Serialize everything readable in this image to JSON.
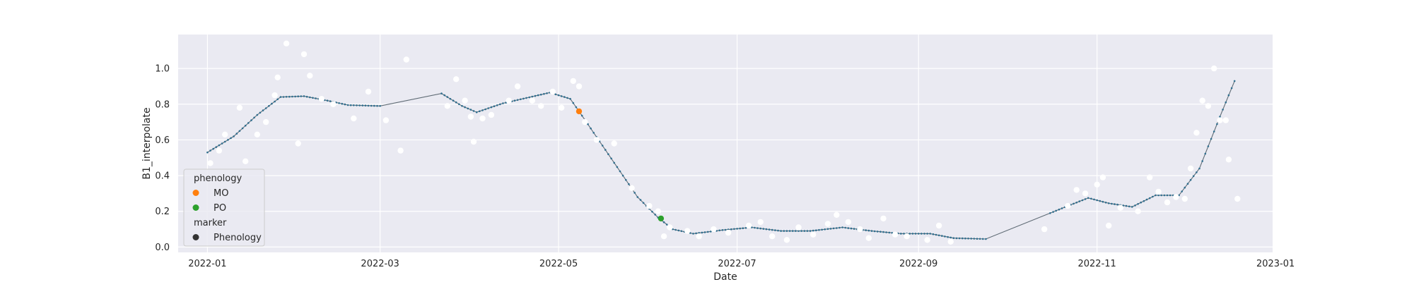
{
  "chart_data": {
    "type": "scatter",
    "title": "",
    "xlabel": "Date",
    "ylabel": "B1_interpolate",
    "x_range": [
      "2021-12-22",
      "2022-12-31"
    ],
    "ylim": [
      -0.03,
      1.19
    ],
    "x_ticks": [
      "2022-01",
      "2022-03",
      "2022-05",
      "2022-07",
      "2022-09",
      "2022-11",
      "2023-01"
    ],
    "x_tick_dates": [
      "2022-01-01",
      "2022-03-01",
      "2022-05-01",
      "2022-07-01",
      "2022-09-01",
      "2022-11-01",
      "2023-01-01"
    ],
    "y_ticks": [
      "0.0",
      "0.2",
      "0.4",
      "0.6",
      "0.8",
      "1.0"
    ],
    "y_tick_values": [
      0,
      0.2,
      0.4,
      0.6,
      0.8,
      1.0
    ],
    "grid": true,
    "background_color": "#eaeaf2",
    "legend": {
      "placement": "lower-left",
      "title_phenology": "phenology",
      "title_marker": "marker",
      "items": [
        {
          "label": "MO",
          "color": "#ff7f0e"
        },
        {
          "label": "PO",
          "color": "#2ca02c"
        }
      ],
      "marker_items": [
        {
          "label": "Phenology",
          "color": "#333333"
        }
      ]
    },
    "interpolated_line": {
      "color": "#5f6b75",
      "dot_color": "#2f6f8f",
      "knots": [
        [
          "2022-01-01",
          0.53
        ],
        [
          "2022-01-10",
          0.62
        ],
        [
          "2022-01-18",
          0.74
        ],
        [
          "2022-01-26",
          0.84
        ],
        [
          "2022-02-03",
          0.845
        ],
        [
          "2022-02-11",
          0.82
        ],
        [
          "2022-02-18",
          0.795
        ],
        [
          "2022-03-01",
          0.79
        ],
        [
          "2022-03-22",
          0.86
        ],
        [
          "2022-03-29",
          0.79
        ],
        [
          "2022-04-03",
          0.755
        ],
        [
          "2022-04-12",
          0.805
        ],
        [
          "2022-04-20",
          0.835
        ],
        [
          "2022-04-28",
          0.865
        ],
        [
          "2022-05-05",
          0.83
        ],
        [
          "2022-05-08",
          0.76
        ],
        [
          "2022-05-18",
          0.52
        ],
        [
          "2022-05-28",
          0.28
        ],
        [
          "2022-06-04",
          0.165
        ],
        [
          "2022-06-09",
          0.1
        ],
        [
          "2022-06-16",
          0.075
        ],
        [
          "2022-06-26",
          0.095
        ],
        [
          "2022-07-06",
          0.11
        ],
        [
          "2022-07-16",
          0.09
        ],
        [
          "2022-07-26",
          0.09
        ],
        [
          "2022-08-06",
          0.11
        ],
        [
          "2022-08-16",
          0.09
        ],
        [
          "2022-08-26",
          0.075
        ],
        [
          "2022-09-05",
          0.075
        ],
        [
          "2022-09-13",
          0.05
        ],
        [
          "2022-09-24",
          0.045
        ],
        [
          "2022-10-16",
          0.19
        ],
        [
          "2022-10-22",
          0.23
        ],
        [
          "2022-10-29",
          0.275
        ],
        [
          "2022-11-05",
          0.245
        ],
        [
          "2022-11-13",
          0.225
        ],
        [
          "2022-11-21",
          0.29
        ],
        [
          "2022-11-29",
          0.29
        ],
        [
          "2022-12-06",
          0.44
        ],
        [
          "2022-12-13",
          0.73
        ],
        [
          "2022-12-18",
          0.93
        ]
      ]
    },
    "observed_points": {
      "color": "#ffffff",
      "points": [
        [
          "2022-01-02",
          0.47
        ],
        [
          "2022-01-05",
          0.54
        ],
        [
          "2022-01-07",
          0.63
        ],
        [
          "2022-01-12",
          0.78
        ],
        [
          "2022-01-14",
          0.48
        ],
        [
          "2022-01-18",
          0.63
        ],
        [
          "2022-01-21",
          0.7
        ],
        [
          "2022-01-24",
          0.85
        ],
        [
          "2022-01-25",
          0.95
        ],
        [
          "2022-01-28",
          1.14
        ],
        [
          "2022-02-01",
          0.58
        ],
        [
          "2022-02-03",
          1.08
        ],
        [
          "2022-02-05",
          0.96
        ],
        [
          "2022-02-09",
          0.83
        ],
        [
          "2022-02-13",
          0.8
        ],
        [
          "2022-02-20",
          0.72
        ],
        [
          "2022-02-25",
          0.87
        ],
        [
          "2022-03-03",
          0.71
        ],
        [
          "2022-03-08",
          0.54
        ],
        [
          "2022-03-10",
          1.05
        ],
        [
          "2022-03-24",
          0.79
        ],
        [
          "2022-03-27",
          0.94
        ],
        [
          "2022-03-30",
          0.82
        ],
        [
          "2022-04-01",
          0.73
        ],
        [
          "2022-04-02",
          0.59
        ],
        [
          "2022-04-05",
          0.72
        ],
        [
          "2022-04-08",
          0.74
        ],
        [
          "2022-04-14",
          0.82
        ],
        [
          "2022-04-17",
          0.9
        ],
        [
          "2022-04-22",
          0.82
        ],
        [
          "2022-04-25",
          0.79
        ],
        [
          "2022-04-29",
          0.87
        ],
        [
          "2022-05-02",
          0.78
        ],
        [
          "2022-05-06",
          0.93
        ],
        [
          "2022-05-08",
          0.9
        ],
        [
          "2022-05-10",
          0.7
        ],
        [
          "2022-05-14",
          0.6
        ],
        [
          "2022-05-20",
          0.58
        ],
        [
          "2022-05-26",
          0.33
        ],
        [
          "2022-06-01",
          0.23
        ],
        [
          "2022-06-04",
          0.2
        ],
        [
          "2022-06-06",
          0.06
        ],
        [
          "2022-06-08",
          0.11
        ],
        [
          "2022-06-14",
          0.09
        ],
        [
          "2022-06-18",
          0.06
        ],
        [
          "2022-06-23",
          0.1
        ],
        [
          "2022-06-28",
          0.08
        ],
        [
          "2022-07-05",
          0.12
        ],
        [
          "2022-07-09",
          0.14
        ],
        [
          "2022-07-13",
          0.06
        ],
        [
          "2022-07-18",
          0.04
        ],
        [
          "2022-07-22",
          0.11
        ],
        [
          "2022-07-27",
          0.07
        ],
        [
          "2022-08-01",
          0.13
        ],
        [
          "2022-08-04",
          0.18
        ],
        [
          "2022-08-08",
          0.14
        ],
        [
          "2022-08-12",
          0.1
        ],
        [
          "2022-08-15",
          0.05
        ],
        [
          "2022-08-20",
          0.16
        ],
        [
          "2022-08-24",
          0.07
        ],
        [
          "2022-08-28",
          0.06
        ],
        [
          "2022-09-04",
          0.04
        ],
        [
          "2022-09-08",
          0.12
        ],
        [
          "2022-09-12",
          0.03
        ],
        [
          "2022-10-14",
          0.1
        ],
        [
          "2022-10-22",
          0.23
        ],
        [
          "2022-10-25",
          0.32
        ],
        [
          "2022-10-28",
          0.3
        ],
        [
          "2022-11-01",
          0.35
        ],
        [
          "2022-11-03",
          0.39
        ],
        [
          "2022-11-05",
          0.12
        ],
        [
          "2022-11-09",
          0.22
        ],
        [
          "2022-11-15",
          0.2
        ],
        [
          "2022-11-19",
          0.39
        ],
        [
          "2022-11-22",
          0.31
        ],
        [
          "2022-11-25",
          0.25
        ],
        [
          "2022-11-28",
          0.28
        ],
        [
          "2022-12-01",
          0.27
        ],
        [
          "2022-12-03",
          0.44
        ],
        [
          "2022-12-05",
          0.64
        ],
        [
          "2022-12-07",
          0.82
        ],
        [
          "2022-12-09",
          0.79
        ],
        [
          "2022-12-11",
          1.0
        ],
        [
          "2022-12-13",
          0.71
        ],
        [
          "2022-12-15",
          0.71
        ],
        [
          "2022-12-16",
          0.49
        ],
        [
          "2022-12-19",
          0.27
        ]
      ]
    },
    "phenology_points": [
      {
        "label": "MO",
        "date": "2022-05-08",
        "value": 0.76,
        "color": "#ff7f0e"
      },
      {
        "label": "PO",
        "date": "2022-06-05",
        "value": 0.16,
        "color": "#2ca02c"
      }
    ]
  }
}
